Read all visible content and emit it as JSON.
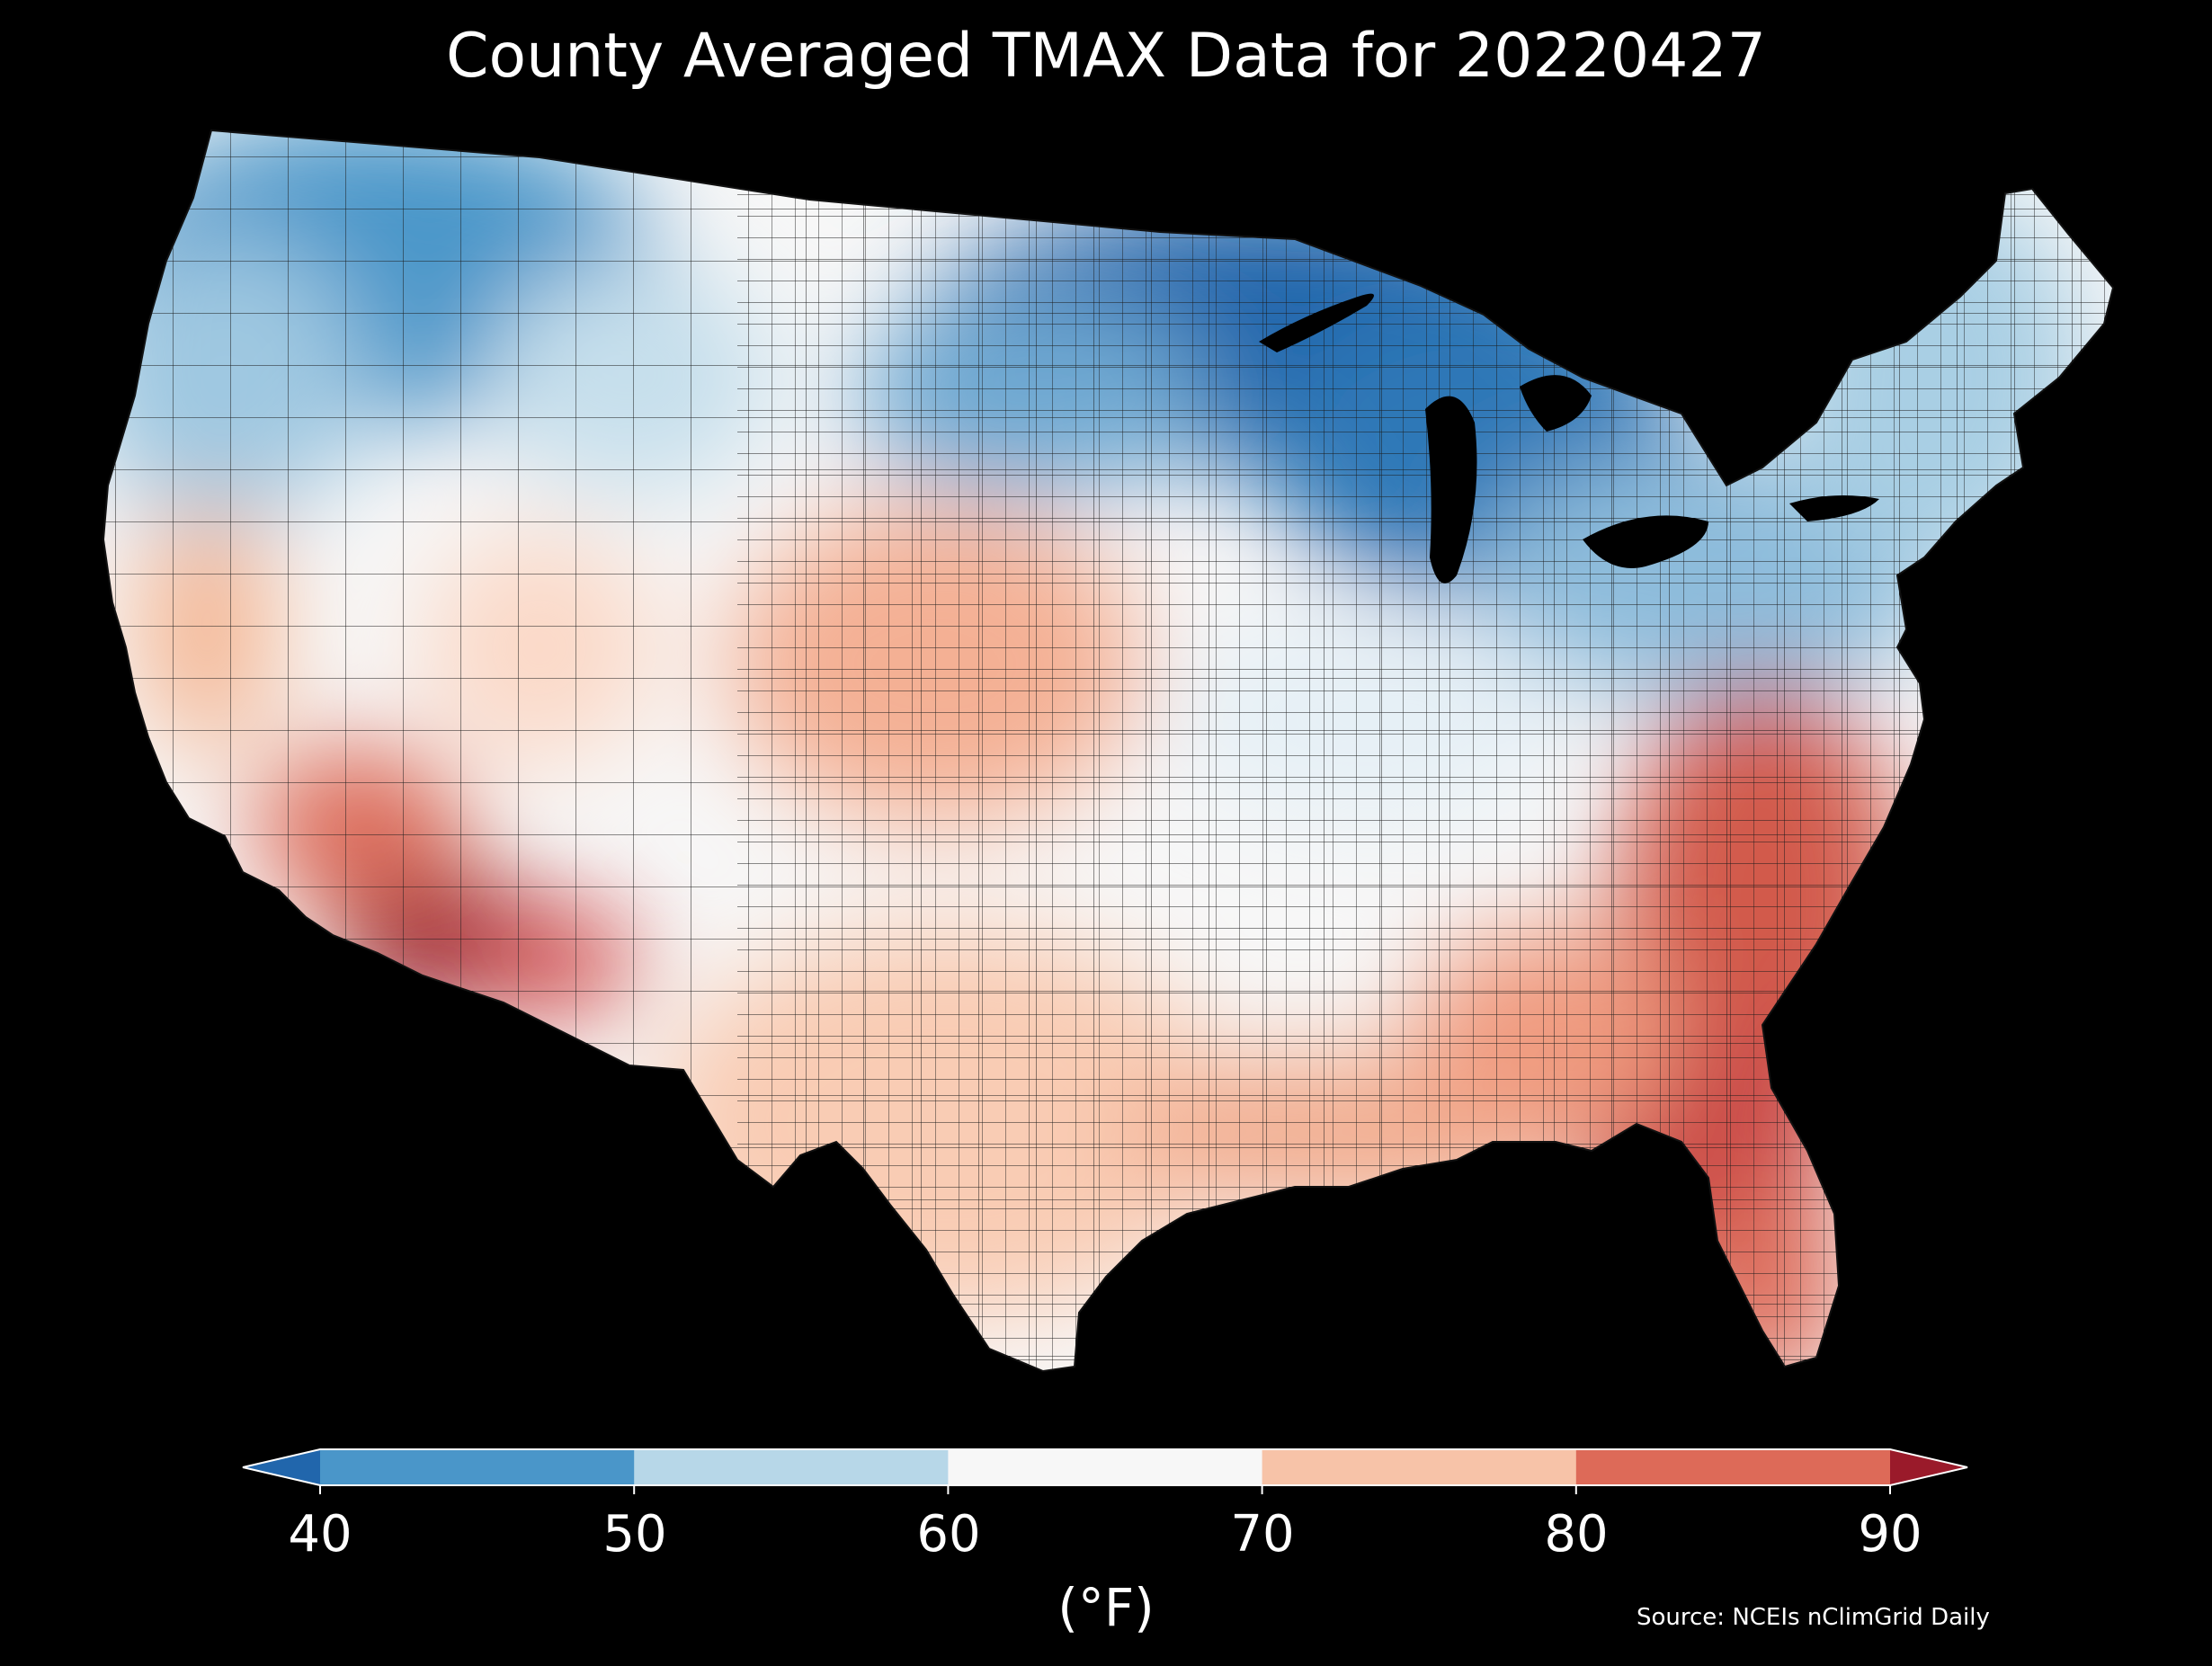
{
  "title": "County Averaged TMAX Data for 20220427",
  "colorbar": {
    "ticks": [
      "40",
      "50",
      "60",
      "70",
      "80",
      "90"
    ],
    "unit": "(°F)",
    "bins": [
      {
        "from": null,
        "to": 40,
        "color": "#2166ac"
      },
      {
        "from": 40,
        "to": 50,
        "color": "#4a96c9"
      },
      {
        "from": 50,
        "to": 60,
        "color": "#b7d7e8"
      },
      {
        "from": 60,
        "to": 70,
        "color": "#f7f7f7"
      },
      {
        "from": 70,
        "to": 80,
        "color": "#f7c3a8"
      },
      {
        "from": 80,
        "to": 90,
        "color": "#dd6a58"
      },
      {
        "from": 90,
        "to": null,
        "color": "#9a1a2a"
      }
    ]
  },
  "source": "Source: NCEIs nClimGrid Daily",
  "map": {
    "region": "Contiguous United States",
    "variable": "TMAX",
    "date": "20220427",
    "background": "#000000",
    "county_border_color": "#222222",
    "lake_color": "#000000"
  }
}
